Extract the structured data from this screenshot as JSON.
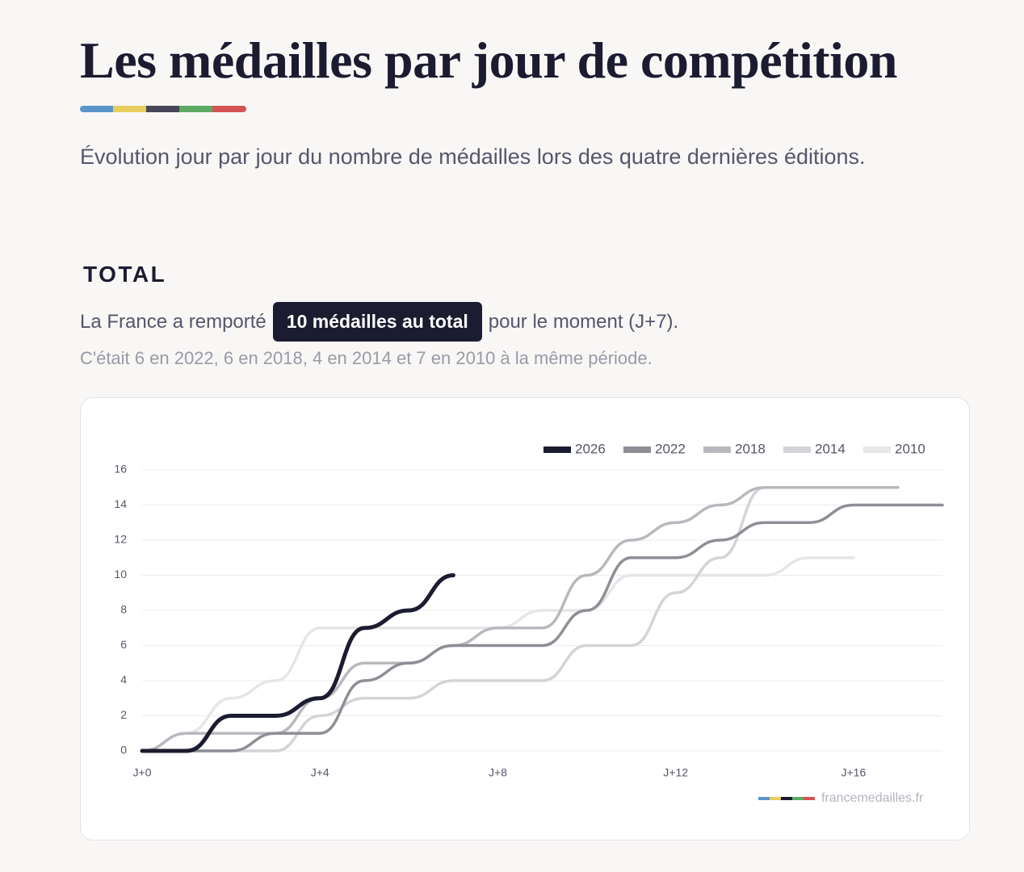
{
  "header": {
    "title": "Les médailles par jour de compétition",
    "subtitle": "Évolution jour par jour du nombre de médailles lors des quatre dernières éditions."
  },
  "section": {
    "title": "TOTAL",
    "lead_before": "La France a remporté",
    "highlight": "10 médailles au total",
    "lead_after": "pour le moment (J+7).",
    "note": "C'était 6 en 2022, 6 en 2018, 4 en 2014 et 7 en 2010 à la même période."
  },
  "chart_data": {
    "type": "line",
    "source": "francemedailles.fr",
    "x": [
      0,
      1,
      2,
      3,
      4,
      5,
      6,
      7,
      8,
      9,
      10,
      11,
      12,
      13,
      14,
      15,
      16,
      17,
      18
    ],
    "series": [
      {
        "name": "2026",
        "color": "#1c1c30",
        "values": [
          0,
          0,
          2,
          2,
          3,
          7,
          8,
          10,
          null,
          null,
          null,
          null,
          null,
          null,
          null,
          null,
          null,
          null,
          null
        ]
      },
      {
        "name": "2022",
        "color": "#8e8e96",
        "values": [
          0,
          0,
          0,
          1,
          1,
          4,
          5,
          6,
          6,
          6,
          8,
          11,
          11,
          12,
          13,
          13,
          14,
          14,
          14
        ]
      },
      {
        "name": "2018",
        "color": "#b8b8be",
        "values": [
          0,
          1,
          1,
          1,
          3,
          5,
          5,
          6,
          7,
          7,
          10,
          12,
          13,
          14,
          15,
          15,
          15,
          15,
          null
        ]
      },
      {
        "name": "2014",
        "color": "#d4d4d8",
        "values": [
          0,
          0,
          0,
          0,
          2,
          3,
          3,
          4,
          4,
          4,
          6,
          6,
          9,
          11,
          15,
          15,
          15,
          15,
          null
        ]
      },
      {
        "name": "2010",
        "color": "#e6e6e8",
        "values": [
          0,
          1,
          3,
          4,
          7,
          7,
          7,
          7,
          7,
          8,
          8,
          10,
          10,
          10,
          10,
          11,
          11,
          null,
          null
        ]
      }
    ],
    "xlim": [
      0,
      18
    ],
    "xticks": [
      {
        "value": 0,
        "label": "J+0"
      },
      {
        "value": 4,
        "label": "J+4"
      },
      {
        "value": 8,
        "label": "J+8"
      },
      {
        "value": 12,
        "label": "J+12"
      },
      {
        "value": 16,
        "label": "J+16"
      }
    ],
    "ylim": [
      0,
      16
    ],
    "yticks": [
      0,
      2,
      4,
      6,
      8,
      10,
      12,
      14,
      16
    ],
    "grid": true,
    "legend": "top-right"
  }
}
